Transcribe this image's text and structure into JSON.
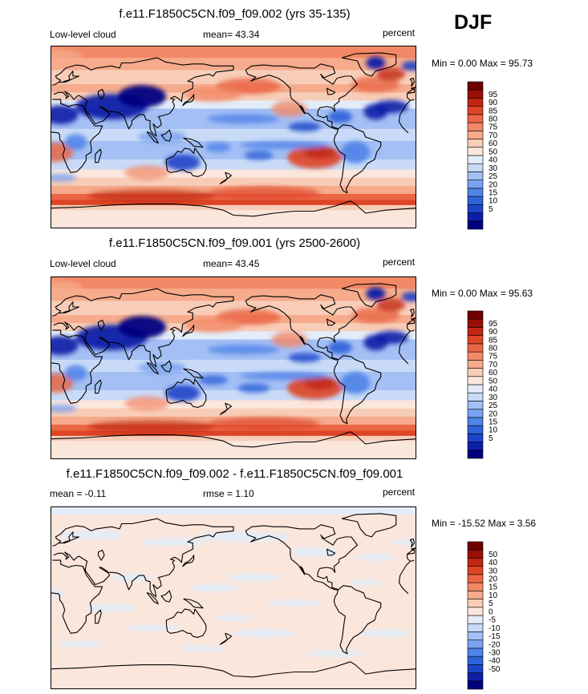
{
  "season": "DJF",
  "colors": {
    "abs_scale": [
      "#00007f",
      "#0d1fa6",
      "#1c44c8",
      "#2e63d9",
      "#4f83e8",
      "#7aa2f0",
      "#a3bff4",
      "#c8daf7",
      "#e3ecf8",
      "#fbe6dc",
      "#f8cdb8",
      "#f5ab8c",
      "#f28866",
      "#ea6645",
      "#de4426",
      "#c22612",
      "#990f05",
      "#700000"
    ],
    "diff_scale": [
      "#00007f",
      "#0d1fa6",
      "#1c44c8",
      "#2e63d9",
      "#4f83e8",
      "#7aa2f0",
      "#a3bff4",
      "#c8daf7",
      "#e3ecf8",
      "#fbe6dc",
      "#f8cdb8",
      "#f5ab8c",
      "#f28866",
      "#ea6645",
      "#de4426",
      "#c22612",
      "#990f05",
      "#700000"
    ],
    "coast": "#000000"
  },
  "panels": [
    {
      "title": "f.e11.F1850C5CN.f09_f09.002 (yrs 35-135)",
      "left_label": "Low-level cloud",
      "center_label": "mean=  43.34",
      "right_label": "percent",
      "minmax": "Min =   0.00 Max =  95.73"
    },
    {
      "title": "f.e11.F1850C5CN.f09_f09.001 (yrs 2500-2600)",
      "left_label": "Low-level cloud",
      "center_label": "mean=  43.45",
      "right_label": "percent",
      "minmax": "Min =   0.00 Max =  95.63"
    },
    {
      "title": "f.e11.F1850C5CN.f09_f09.002 - f.e11.F1850C5CN.f09_f09.001",
      "left_label": "mean =  -0.11",
      "center_label": "rmse =   1.10",
      "right_label": "percent",
      "minmax": "Min = -15.52 Max =   3.56"
    }
  ],
  "chart_data": [
    {
      "type": "heatmap",
      "title": "f.e11.F1850C5CN.f09_f09.002 (yrs 35-135)",
      "variable": "Low-level cloud",
      "units": "percent",
      "mean": 43.34,
      "min": 0.0,
      "max": 95.73,
      "colorbar_levels": [
        5,
        10,
        15,
        20,
        25,
        30,
        40,
        50,
        60,
        70,
        75,
        80,
        85,
        90,
        95
      ]
    },
    {
      "type": "heatmap",
      "title": "f.e11.F1850C5CN.f09_f09.001 (yrs 2500-2600)",
      "variable": "Low-level cloud",
      "units": "percent",
      "mean": 43.45,
      "min": 0.0,
      "max": 95.63,
      "colorbar_levels": [
        5,
        10,
        15,
        20,
        25,
        30,
        40,
        50,
        60,
        70,
        75,
        80,
        85,
        90,
        95
      ]
    },
    {
      "type": "heatmap",
      "title": "f.e11.F1850C5CN.f09_f09.002 - f.e11.F1850C5CN.f09_f09.001",
      "units": "percent",
      "mean": -0.11,
      "rmse": 1.1,
      "min": -15.52,
      "max": 3.56,
      "colorbar_levels": [
        -50,
        -40,
        -30,
        -20,
        -15,
        -10,
        -5,
        0,
        5,
        10,
        15,
        20,
        30,
        40,
        50
      ]
    }
  ]
}
